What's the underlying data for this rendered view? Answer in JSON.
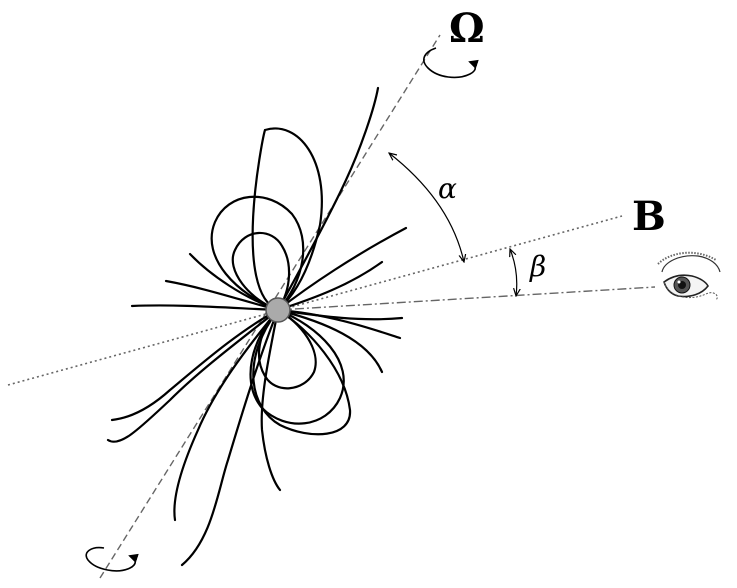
{
  "labels": {
    "rotation_axis": "Ω",
    "magnetic_axis": "B",
    "angle_alpha": "α",
    "angle_beta": "β"
  },
  "colors": {
    "lines": "#000000",
    "axes": "#666666",
    "star_fill": "#aaaaaa",
    "star_stroke": "#555555"
  },
  "icons": {
    "observer": "eye-icon",
    "rotation": "rotation-arrow-icon"
  }
}
